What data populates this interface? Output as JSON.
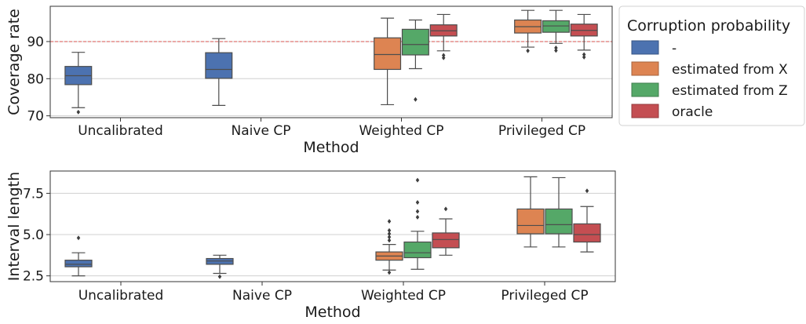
{
  "chart_data": [
    {
      "type": "box",
      "xlabel": "Method",
      "ylabel": "Coverage rate",
      "categories": [
        "Uncalibrated",
        "Naive CP",
        "Weighted CP",
        "Privileged CP"
      ],
      "ylim": [
        69.5,
        99.5
      ],
      "yticks": [
        70,
        80,
        90
      ],
      "reference_line": 90,
      "grid": "horizontal",
      "series": [
        {
          "name": "-",
          "color": "#4c72b0",
          "boxes": [
            {
              "category": 0,
              "whisker_low": 72.2,
              "q1": 78.4,
              "median": 80.8,
              "q3": 83.3,
              "whisker_high": 87.1,
              "outliers": [
                71.0
              ]
            },
            {
              "category": 1,
              "whisker_low": 72.8,
              "q1": 80.1,
              "median": 82.5,
              "q3": 87.0,
              "whisker_high": 90.8,
              "outliers": []
            }
          ]
        },
        {
          "name": "estimated from X",
          "color": "#dd8452",
          "boxes": [
            {
              "category": 2,
              "whisker_low": 73.0,
              "q1": 82.5,
              "median": 86.5,
              "q3": 91.0,
              "whisker_high": 96.3,
              "outliers": []
            },
            {
              "category": 3,
              "whisker_low": 88.5,
              "q1": 92.3,
              "median": 94.0,
              "q3": 95.8,
              "whisker_high": 98.4,
              "outliers": [
                87.5
              ]
            }
          ]
        },
        {
          "name": "estimated from Z",
          "color": "#55a868",
          "boxes": [
            {
              "category": 2,
              "whisker_low": 82.7,
              "q1": 86.4,
              "median": 89.2,
              "q3": 93.3,
              "whisker_high": 95.8,
              "outliers": [
                74.4
              ]
            },
            {
              "category": 3,
              "whisker_low": 89.5,
              "q1": 92.5,
              "median": 94.2,
              "q3": 95.6,
              "whisker_high": 98.4,
              "outliers": [
                87.6,
                88.3
              ]
            }
          ]
        },
        {
          "name": "oracle",
          "color": "#c44e52",
          "boxes": [
            {
              "category": 2,
              "whisker_low": 87.5,
              "q1": 91.5,
              "median": 92.9,
              "q3": 94.5,
              "whisker_high": 97.3,
              "outliers": [
                85.6,
                86.3
              ]
            },
            {
              "category": 3,
              "whisker_low": 87.7,
              "q1": 91.5,
              "median": 93.0,
              "q3": 94.7,
              "whisker_high": 97.3,
              "outliers": [
                85.8,
                86.5
              ]
            }
          ]
        }
      ]
    },
    {
      "type": "box",
      "xlabel": "Method",
      "ylabel": "Interval length",
      "categories": [
        "Uncalibrated",
        "Naive CP",
        "Weighted CP",
        "Privileged CP"
      ],
      "ylim": [
        2.15,
        8.85
      ],
      "yticks": [
        2.5,
        5.0,
        7.5
      ],
      "ytick_labels": [
        "2.5",
        "5.0",
        "7.5"
      ],
      "grid": "horizontal",
      "series": [
        {
          "name": "-",
          "color": "#4c72b0",
          "boxes": [
            {
              "category": 0,
              "whisker_low": 2.5,
              "q1": 3.05,
              "median": 3.2,
              "q3": 3.45,
              "whisker_high": 3.9,
              "outliers": [
                4.8
              ]
            },
            {
              "category": 1,
              "whisker_low": 2.65,
              "q1": 3.2,
              "median": 3.4,
              "q3": 3.55,
              "whisker_high": 3.75,
              "outliers": [
                2.45
              ]
            }
          ]
        },
        {
          "name": "estimated from X",
          "color": "#dd8452",
          "boxes": [
            {
              "category": 2,
              "whisker_low": 2.85,
              "q1": 3.45,
              "median": 3.7,
              "q3": 3.95,
              "whisker_high": 4.4,
              "outliers": [
                2.7,
                4.65,
                4.85,
                5.05,
                5.25,
                5.8
              ]
            },
            {
              "category": 3,
              "whisker_low": 4.25,
              "q1": 5.05,
              "median": 5.55,
              "q3": 6.55,
              "whisker_high": 8.5,
              "outliers": []
            }
          ]
        },
        {
          "name": "estimated from Z",
          "color": "#55a868",
          "boxes": [
            {
              "category": 2,
              "whisker_low": 2.9,
              "q1": 3.6,
              "median": 3.9,
              "q3": 4.55,
              "whisker_high": 5.2,
              "outliers": [
                6.05,
                6.4,
                6.95,
                8.3
              ]
            },
            {
              "category": 3,
              "whisker_low": 4.25,
              "q1": 5.05,
              "median": 5.6,
              "q3": 6.55,
              "whisker_high": 8.45,
              "outliers": []
            }
          ]
        },
        {
          "name": "oracle",
          "color": "#c44e52",
          "boxes": [
            {
              "category": 2,
              "whisker_low": 3.75,
              "q1": 4.2,
              "median": 4.7,
              "q3": 5.1,
              "whisker_high": 5.95,
              "outliers": [
                6.55
              ]
            },
            {
              "category": 3,
              "whisker_low": 3.95,
              "q1": 4.55,
              "median": 5.0,
              "q3": 5.65,
              "whisker_high": 6.7,
              "outliers": [
                7.65
              ]
            }
          ]
        }
      ]
    }
  ],
  "legend": {
    "title": "Corruption probability",
    "placement": "outside-right",
    "items": [
      {
        "label": "-",
        "color": "#4c72b0"
      },
      {
        "label": "estimated from X",
        "color": "#dd8452"
      },
      {
        "label": "estimated from Z",
        "color": "#55a868"
      },
      {
        "label": "oracle",
        "color": "#c44e52"
      }
    ]
  }
}
